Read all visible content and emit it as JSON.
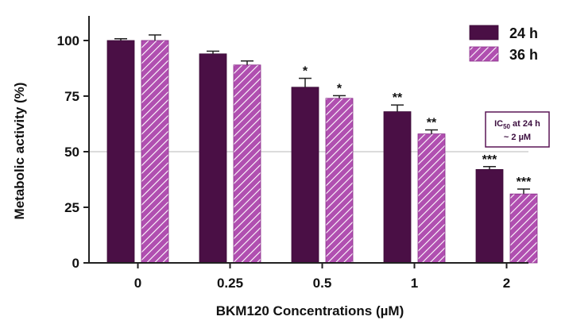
{
  "chart_data": {
    "type": "bar",
    "title": "",
    "xlabel": "BKM120 Concentrations (µM)",
    "ylabel": "Metabolic activity (%)",
    "ylim": [
      0,
      110
    ],
    "yticks": [
      "0",
      "25",
      "50",
      "75",
      "100"
    ],
    "categories": [
      "0",
      "0.25",
      "0.5",
      "1",
      "2"
    ],
    "series": [
      {
        "name": "24 h",
        "color": "#4a0f45",
        "pattern": "solid",
        "values": [
          100,
          94,
          79,
          68,
          42
        ],
        "errors": [
          0.8,
          1.2,
          4.0,
          3.0,
          1.3
        ],
        "significance": [
          "",
          "",
          "*",
          "**",
          "***"
        ]
      },
      {
        "name": "36 h",
        "color": "#b04fb0",
        "pattern": "hatched",
        "values": [
          100,
          89,
          74,
          58,
          31
        ],
        "errors": [
          2.5,
          1.8,
          1.2,
          1.8,
          2.2
        ],
        "significance": [
          "",
          "",
          "*",
          "**",
          "***"
        ]
      }
    ],
    "reference_line": 50,
    "legend_position": "top-right",
    "annotation": {
      "line1": "IC",
      "subscript": "50",
      "line1_rest": " at 24 h",
      "line2": "~ 2 µM"
    },
    "grid": false
  }
}
